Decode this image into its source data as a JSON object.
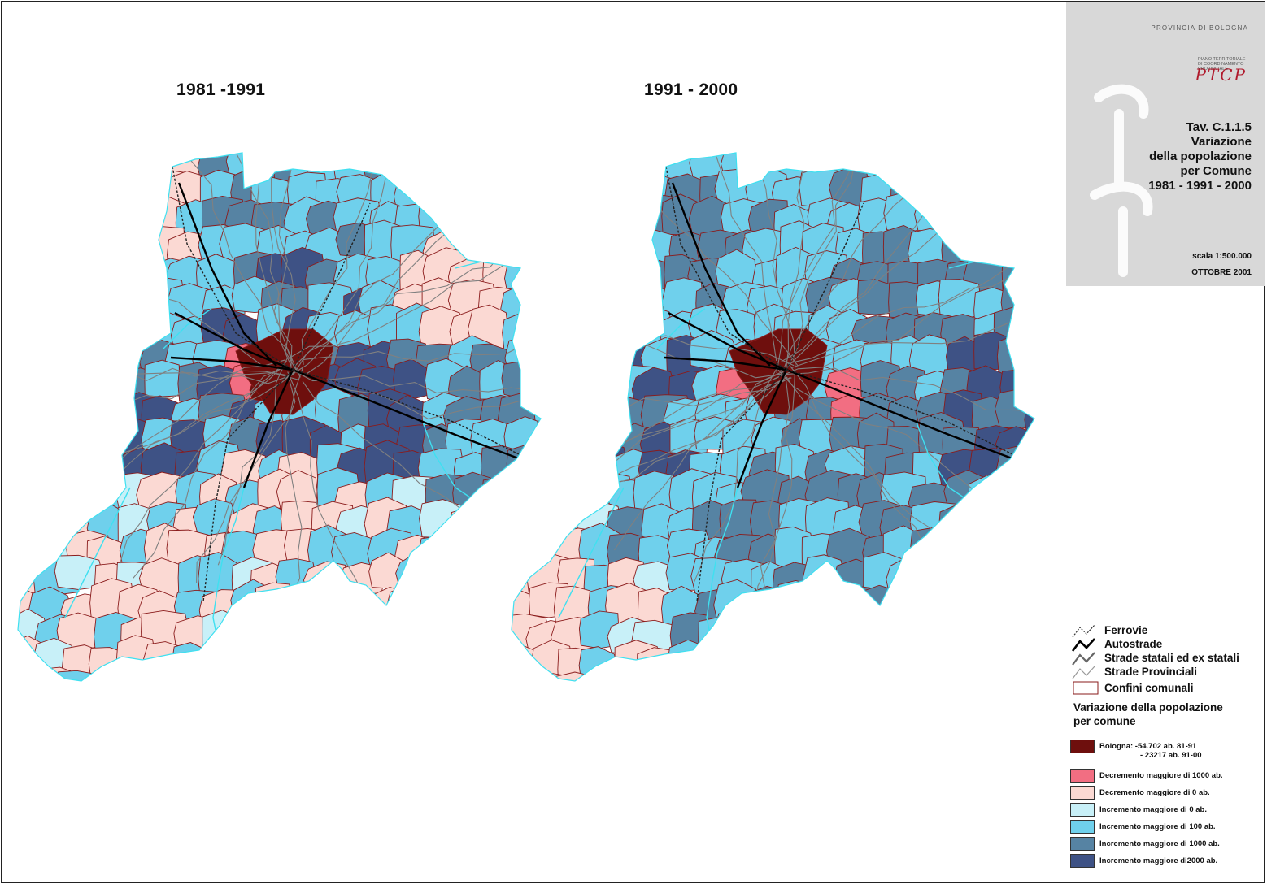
{
  "maps": [
    {
      "title": "1981 -1991"
    },
    {
      "title": "1991 - 2000"
    }
  ],
  "titleblock": {
    "province": "PROVINCIA DI BOLOGNA",
    "plan_lines": [
      "PIANO TERRITORIALE",
      "DI COORDINAMENTO",
      "PROVINCIALE"
    ],
    "logo_text": "PTCP",
    "tav_lines": [
      "Tav. C.1.1.5",
      "Variazione",
      "della popolazione",
      "per Comune",
      "1981 - 1991 - 2000"
    ],
    "scale": "scala 1:500.000",
    "date": "OTTOBRE 2001"
  },
  "legend": {
    "lines": [
      {
        "label": "Ferrovie",
        "icon": "railway-icon"
      },
      {
        "label": "Autostrade",
        "icon": "motorway-icon"
      },
      {
        "label": "Strade statali ed ex statali",
        "icon": "state-road-icon"
      },
      {
        "label": "Strade Provinciali",
        "icon": "provincial-road-icon"
      }
    ],
    "boundary_label": "Confini comunali",
    "heading_1": "Variazione della popolazione",
    "heading_2": "per comune",
    "classes": [
      {
        "label": "Bologna: -54.702 ab. 81-91",
        "label2": "- 23217 ab. 91-00",
        "color": "#6e0f0d"
      },
      {
        "label": "Decremento maggiore di 1000 ab.",
        "color": "#f26e82"
      },
      {
        "label": "Decremento maggiore di 0 ab.",
        "color": "#fbd9d3"
      },
      {
        "label": "Incremento maggiore di 0 ab.",
        "color": "#c8f0f8"
      },
      {
        "label": "Incremento maggiore di 100 ab.",
        "color": "#6fd0ec"
      },
      {
        "label": "Incremento maggiore di 1000 ab.",
        "color": "#5683a3"
      },
      {
        "label": "Incremento maggiore di2000 ab.",
        "color": "#3e5285"
      }
    ]
  },
  "colors": {
    "boundary": "#8a1b1b",
    "roads": "#808080",
    "rivers": "#3fe0f0"
  }
}
